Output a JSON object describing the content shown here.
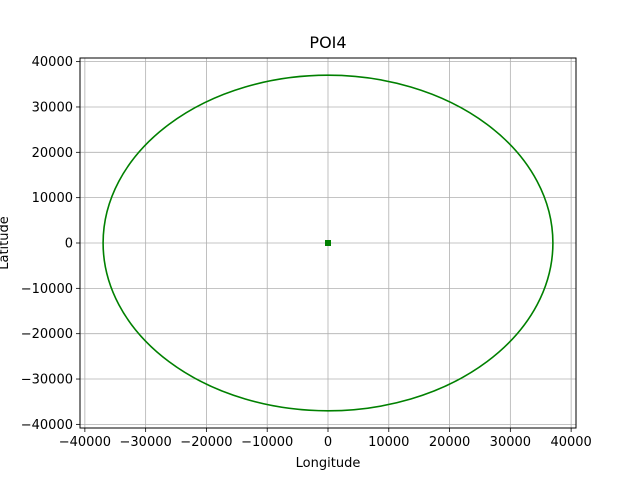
{
  "chart_data": {
    "type": "scatter",
    "title": "POI4",
    "xlabel": "Longitude",
    "ylabel": "Latitude",
    "xlim": [
      -40800,
      40800
    ],
    "ylim": [
      -40800,
      40800
    ],
    "grid": true,
    "x_ticks": [
      -40000,
      -30000,
      -20000,
      -10000,
      0,
      10000,
      20000,
      30000,
      40000
    ],
    "x_tick_labels": [
      "−40000",
      "−30000",
      "−20000",
      "−10000",
      "0",
      "10000",
      "20000",
      "30000",
      "40000"
    ],
    "y_ticks": [
      -40000,
      -30000,
      -20000,
      -10000,
      0,
      10000,
      20000,
      30000,
      40000
    ],
    "y_tick_labels": [
      "−40000",
      "−30000",
      "−20000",
      "−10000",
      "0",
      "10000",
      "20000",
      "30000",
      "40000"
    ],
    "series": [
      {
        "kind": "circle",
        "center": [
          0,
          0
        ],
        "radius": 37000,
        "color": "#008000"
      },
      {
        "kind": "point",
        "x": [
          0
        ],
        "y": [
          0
        ],
        "marker": "square",
        "color": "#008000"
      }
    ]
  }
}
